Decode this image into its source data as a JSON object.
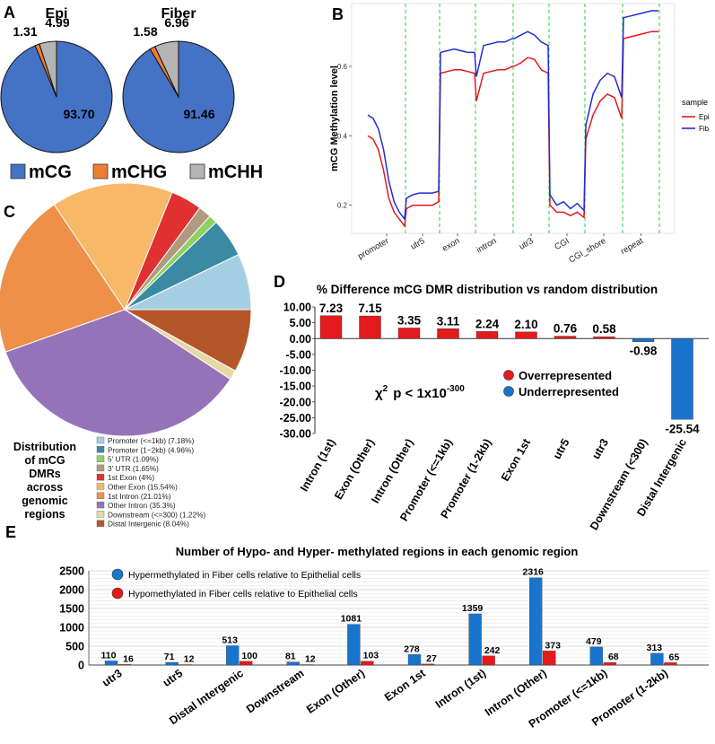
{
  "panels": {
    "A": "A",
    "B": "B",
    "C": "C",
    "D": "D",
    "E": "E"
  },
  "colors": {
    "mcg": "#4472c4",
    "mchg": "#ed7d31",
    "mchh": "#b4b4b4",
    "epi": "#e41a1c",
    "fib": "#1f2fd0",
    "over": "#e41a1c",
    "under": "#1874cd"
  },
  "chart_data": [
    {
      "type": "pie",
      "id": "A",
      "pies": [
        {
          "title": "Epi",
          "labels": [
            "mCG",
            "mCHG",
            "mCHH"
          ],
          "values": [
            93.7,
            1.31,
            4.99
          ],
          "value_labels": [
            "93.70",
            "1.31",
            "4.99"
          ]
        },
        {
          "title": "Fiber",
          "labels": [
            "mCG",
            "mCHG",
            "mCHH"
          ],
          "values": [
            91.46,
            1.58,
            6.96
          ],
          "value_labels": [
            "91.46",
            "1.58",
            "6.96"
          ]
        }
      ],
      "legend": [
        "mCG",
        "mCHG",
        "mCHH"
      ]
    },
    {
      "type": "line",
      "id": "B",
      "ylabel": "mCG Methylation level",
      "ylim": [
        0.14,
        0.8
      ],
      "yticks": [
        0.2,
        0.4,
        0.6
      ],
      "ytick_labels": [
        "0.2",
        "0.4",
        "0.6"
      ],
      "regions": [
        "promoter",
        "utr5",
        "exon",
        "intron",
        "utr3",
        "CGI",
        "CGI_shore",
        "repeat"
      ],
      "legend_title": "sample",
      "series": [
        {
          "name": "Epi",
          "segments": [
            [
              0.4,
              0.39,
              0.36,
              0.3,
              0.22,
              0.18,
              0.16,
              0.14
            ],
            [
              0.19,
              0.2,
              0.2,
              0.2,
              0.2,
              0.21
            ],
            [
              0.58,
              0.585,
              0.59,
              0.59,
              0.585,
              0.58
            ],
            [
              0.5,
              0.58,
              0.585,
              0.59,
              0.59,
              0.6
            ],
            [
              0.6,
              0.61,
              0.625,
              0.62,
              0.59,
              0.58
            ],
            [
              0.2,
              0.18,
              0.18,
              0.17,
              0.18,
              0.165
            ],
            [
              0.39,
              0.46,
              0.5,
              0.52,
              0.51,
              0.45
            ],
            [
              0.68,
              0.685,
              0.69,
              0.695,
              0.7,
              0.7
            ]
          ]
        },
        {
          "name": "Fib",
          "segments": [
            [
              0.46,
              0.45,
              0.42,
              0.36,
              0.27,
              0.21,
              0.18,
              0.16
            ],
            [
              0.22,
              0.23,
              0.235,
              0.235,
              0.235,
              0.24
            ],
            [
              0.64,
              0.645,
              0.65,
              0.645,
              0.64,
              0.64
            ],
            [
              0.57,
              0.66,
              0.665,
              0.67,
              0.67,
              0.68
            ],
            [
              0.68,
              0.69,
              0.7,
              0.69,
              0.67,
              0.66
            ],
            [
              0.23,
              0.2,
              0.21,
              0.19,
              0.205,
              0.185
            ],
            [
              0.43,
              0.52,
              0.56,
              0.58,
              0.57,
              0.51
            ],
            [
              0.74,
              0.745,
              0.75,
              0.755,
              0.76,
              0.76
            ]
          ]
        }
      ]
    },
    {
      "type": "pie",
      "id": "C",
      "title_lines": [
        "Distribution",
        "of mCG",
        "DMRs",
        "across",
        "genomic",
        "regions"
      ],
      "labels": [
        "Promoter (<=1kb) (7.18%)",
        "Promoter (1−2kb) (4.96%)",
        "5' UTR (1.09%)",
        "3' UTR (1.65%)",
        "1st Exon (4%)",
        "Other Exon (15.54%)",
        "1st Intron (21.01%)",
        "Other Intron (35.3%)",
        "Downstream (<=300) (1.22%)",
        "Distal Intergenic (8.04%)"
      ],
      "values": [
        7.18,
        4.96,
        1.09,
        1.65,
        4.0,
        15.54,
        21.01,
        35.3,
        1.22,
        8.04
      ],
      "colors": [
        "#a6cee3",
        "#3a8aa4",
        "#90d060",
        "#b09a80",
        "#e03030",
        "#f7b868",
        "#ee9048",
        "#9573b8",
        "#e6d9a5",
        "#b5562a"
      ]
    },
    {
      "type": "bar",
      "id": "D",
      "title": "% Difference mCG DMR distribution vs random distribution",
      "categories": [
        "Intron (1st)",
        "Exon (Other)",
        "Intron (Other)",
        "Promoter (<=1kb)",
        "Promoter (1-2kb)",
        "Exon 1st",
        "utr5",
        "utr3",
        "Downstream (<300)",
        "Distal Intergenic"
      ],
      "values": [
        7.23,
        7.15,
        3.35,
        3.11,
        2.24,
        2.1,
        0.76,
        0.58,
        -0.98,
        -25.54
      ],
      "value_labels": [
        "7.23",
        "7.15",
        "3.35",
        "3.11",
        "2.24",
        "2.10",
        "0.76",
        "0.58",
        "-0.98",
        "-25.54"
      ],
      "ylim": [
        -30,
        10
      ],
      "ytick_labels": [
        "10.00",
        "5.00",
        "0.00",
        "-5.00",
        "-10.00",
        "-15.00",
        "-20.00",
        "-25.00",
        "-30.00"
      ],
      "legend": [
        "Overrepresented",
        "Underrepresented"
      ],
      "annotation": {
        "chi": "χ",
        "sup2": "2",
        "p": "p < 1x10",
        "exp": "-300"
      }
    },
    {
      "type": "bar",
      "id": "E",
      "title": "Number of Hypo- and Hyper- methylated regions in each genomic region",
      "categories": [
        "utr3",
        "utr5",
        "Distal Intergenic",
        "Downstream",
        "Exon (Other)",
        "Exon 1st",
        "Intron (1st)",
        "Intron (Other)",
        "Promoter (<=1kb)",
        "Promoter (1-2kb)"
      ],
      "series": [
        {
          "name": "Hypermethylated in Fiber cells relative to Epithelial cells",
          "values": [
            110,
            71,
            513,
            81,
            1081,
            278,
            1359,
            2316,
            479,
            313
          ],
          "value_labels": [
            "110",
            "71",
            "513",
            "81",
            "1081",
            "278",
            "1359",
            "2316",
            "479",
            "313"
          ]
        },
        {
          "name": "Hypomethylated in Fiber cells relative to Epithelial cells",
          "values": [
            16,
            12,
            100,
            12,
            103,
            27,
            242,
            373,
            68,
            65
          ],
          "value_labels": [
            "16",
            "12",
            "100",
            "12",
            "103",
            "27",
            "242",
            "373",
            "68",
            "65"
          ]
        }
      ],
      "ylim": [
        0,
        2500
      ],
      "ytick_labels": [
        "2500",
        "2000",
        "1500",
        "1000",
        "500",
        "0"
      ]
    }
  ]
}
